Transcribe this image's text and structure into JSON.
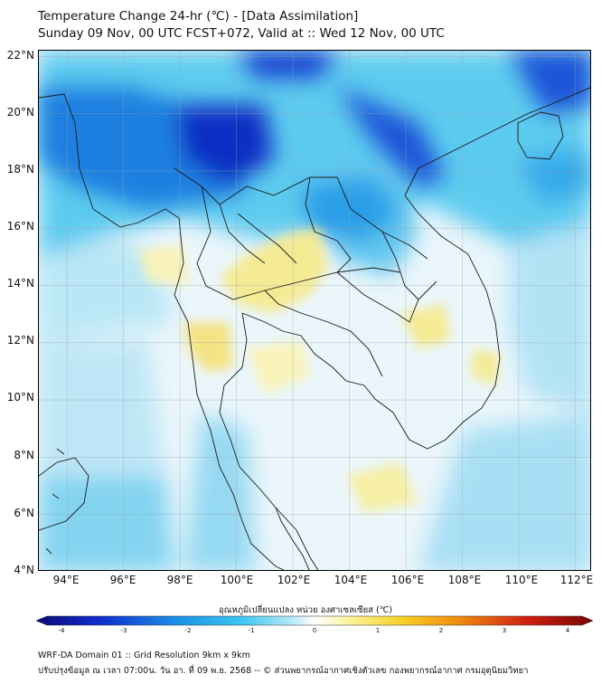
{
  "header": {
    "title_line1": "Temperature Change 24-hr (℃) - [Data Assimilation]",
    "title_line2": "Sunday 09 Nov, 00 UTC FCST+072, Valid at :: Wed 12 Nov, 00 UTC"
  },
  "map": {
    "lat_labels": [
      "22°N",
      "20°N",
      "18°N",
      "16°N",
      "14°N",
      "12°N",
      "10°N",
      "8°N",
      "6°N",
      "4°N"
    ],
    "lon_labels": [
      "94°E",
      "96°E",
      "98°E",
      "100°E",
      "102°E",
      "104°E",
      "106°E",
      "108°E",
      "110°E",
      "112°E"
    ],
    "lat_range": [
      4,
      22.2
    ],
    "lon_range": [
      93,
      112.6
    ],
    "grid": true,
    "colors": {
      "strong_cooling": "#0a1fb0",
      "moderate_cooling": "#1a8fe6",
      "weak_cooling": "#8fd6f3",
      "near_zero": "#eaf6fb",
      "weak_warming": "#fbf3a0",
      "warming": "#f3e070"
    }
  },
  "colorbar": {
    "label": "อุณหภูมิเปลี่ยนแปลง หน่วย องศาเซลเซียส (℃)",
    "ticks": [
      "-4",
      "-3",
      "-2",
      "-1",
      "0",
      "1",
      "2",
      "3",
      "4"
    ],
    "range": [
      -4,
      4
    ],
    "stops": [
      "#0a0a7a",
      "#1030d0",
      "#1a8fe6",
      "#3cc8f0",
      "#b8e8f7",
      "#ffffff",
      "#fbf3a0",
      "#f5d020",
      "#f08a10",
      "#d02010",
      "#7a0505"
    ]
  },
  "footer": {
    "line1": "WRF-DA Domain 01 :: Grid Resolution 9km x 9km",
    "line2": "ปรับปรุงข้อมูล ณ เวลา 07:00น. วัน อา. ที่ 09 พ.ย. 2568 -- © ส่วนพยากรณ์อากาศเชิงตัวเลข กองพยากรณ์อากาศ กรมอุตุนิยมวิทยา"
  }
}
